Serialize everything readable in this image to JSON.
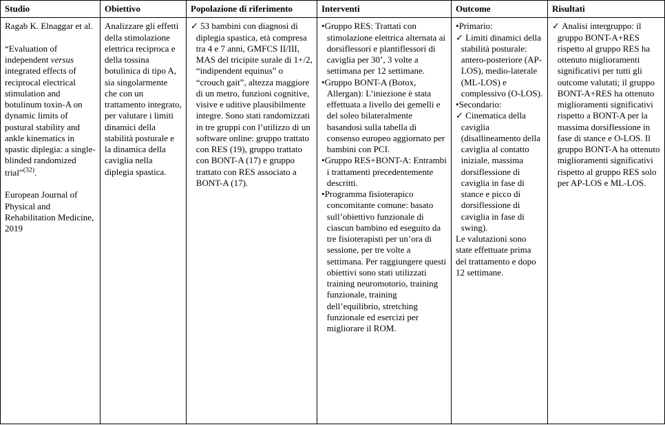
{
  "headers": {
    "studio": "Studio",
    "obiettivo": "Obiettivo",
    "popolazione": "Popolazione di riferimento",
    "interventi": "Interventi",
    "outcome": "Outcome",
    "risultati": "Risultati"
  },
  "row": {
    "studio": {
      "author": "Ragab K. Elnaggar et al.",
      "title_pre": "“Evaluation of independent ",
      "title_italic": "versus",
      "title_post": " integrated effects of reciprocal electrical stimulation and botulinum toxin-A on dynamic limits of postural stability and ankle kinematics in spastic diplegia: a single-blinded randomized trial”",
      "cite": "(32)",
      "dot": ".",
      "journal": "European Journal of Physical and Rehabilitation Medicine, 2019"
    },
    "obiettivo": "Analizzare gli effetti della stimolazione elettrica reciproca e della tossina botulinica di tipo A, sia singolarmente che con un trattamento integrato, per valutare i limiti dinamici della stabilità posturale e la dinamica della caviglia nella diplegia spastica.",
    "popolazione": "53 bambini con diagnosi di diplegia spastica, età compresa tra 4 e 7 anni, GMFCS II/III, MAS del tricipite surale di 1+/2, “indipendent equinus” o “crouch gait”, altezza maggiore di un metro, funzioni cognitive, visive e uditive plausibilmente integre. Sono stati randomizzati in tre gruppi con l’utilizzo di un software online: gruppo trattato con RES (19), gruppo trattato con BONT-A (17) e gruppo trattato con RES associato a BONT-A (17).",
    "interventi": {
      "i1": "Gruppo RES: Trattati con stimolazione elettrica alternata ai dorsiflessori e plantiflessori di caviglia per 30’, 3 volte a settimana per 12 settimane.",
      "i2": "Gruppo BONT-A (Botox, Allergan): L’iniezione è stata effettuata a livello dei gemelli e del soleo bilateralmente basandosi sulla tabella di consenso europeo aggiornato per bambini con PCI.",
      "i3": "Gruppo RES+BONT-A: Entrambi i trattamenti precedentemente descritti.",
      "i4": "Programma fisioterapico concomitante comune: basato sull’obiettivo funzionale di ciascun bambino ed eseguito da tre fisioterapisti per un’ora di sessione, per tre volte a settimana. Per raggiungere questi obiettivi sono stati utilizzati training neuromotorio, training funzionale, training dell’equilibrio, stretching funzionale ed esercizi per migliorare il ROM."
    },
    "outcome": {
      "o1_label": "Primario:",
      "o1_text": "Limiti dinamici della stabilità posturale: antero-posteriore (AP-LOS), medio-laterale (ML-LOS) e complessivo (O-LOS).",
      "o2_label": "Secondario:",
      "o2_text": "Cinematica della caviglia (disallineamento della caviglia al contatto iniziale, massima dorsiflessione di caviglia in fase di stance e picco di dorsiflessione di caviglia in fase di swing).",
      "o3_text": "Le valutazioni sono state effettuate prima del trattamento e dopo 12 settimane."
    },
    "risultati": "Analisi intergruppo: il gruppo BONT-A+RES rispetto al gruppo RES ha ottenuto miglioramenti significativi per tutti gli outcome valutati; il gruppo BONT-A+RES ha ottenuto miglioramenti significativi rispetto a BONT-A per la massima dorsiflessione in fase di stance e O-LOS. Il gruppo BONT-A ha ottenuto miglioramenti significativi rispetto al gruppo RES solo per AP-LOS e ML-LOS."
  }
}
